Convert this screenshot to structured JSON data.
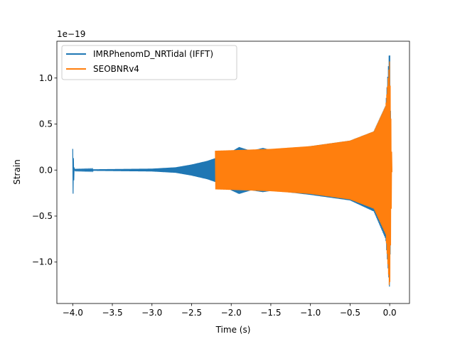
{
  "chart_data": {
    "type": "line",
    "title": "",
    "xlabel": "Time (s)",
    "ylabel": "Strain",
    "offset_text": "1e−19",
    "xlim": [
      -4.2,
      0.25
    ],
    "ylim": [
      -1.45,
      1.4
    ],
    "xticks": [
      -4.0,
      -3.5,
      -3.0,
      -2.5,
      -2.0,
      -1.5,
      -1.0,
      -0.5,
      0.0
    ],
    "xtick_labels": [
      "−4.0",
      "−3.5",
      "−3.0",
      "−2.5",
      "−2.0",
      "−1.5",
      "−1.0",
      "−0.5",
      "0.0"
    ],
    "yticks": [
      -1.0,
      -0.5,
      0.0,
      0.5,
      1.0
    ],
    "ytick_labels": [
      "−1.0",
      "−0.5",
      "0.0",
      "0.5",
      "1.0"
    ],
    "grid": false,
    "legend_position": "top-left",
    "series": [
      {
        "name": "IMRPhenomD_NRTidal (IFFT)",
        "color": "#1f77b4",
        "envelope_x": [
          -4.0,
          -3.98,
          -3.5,
          -3.0,
          -2.7,
          -2.5,
          -2.3,
          -2.2,
          -2.0,
          -1.9,
          -1.75,
          -1.6,
          -1.45,
          -1.3,
          -1.0,
          -0.5,
          -0.2,
          -0.05,
          0.0,
          0.02
        ],
        "envelope_upper": [
          0.23,
          0.005,
          0.01,
          0.015,
          0.03,
          0.06,
          0.1,
          0.13,
          0.2,
          0.25,
          0.21,
          0.24,
          0.21,
          0.23,
          0.26,
          0.32,
          0.42,
          0.7,
          1.34,
          0.0
        ],
        "envelope_lower": [
          -0.33,
          -0.005,
          -0.01,
          -0.015,
          -0.03,
          -0.06,
          -0.1,
          -0.13,
          -0.22,
          -0.26,
          -0.22,
          -0.24,
          -0.22,
          -0.24,
          -0.27,
          -0.33,
          -0.45,
          -0.75,
          -1.3,
          0.0
        ]
      },
      {
        "name": "SEOBNRv4",
        "color": "#ff7f0e",
        "envelope_x": [
          -2.2,
          -1.5,
          -1.0,
          -0.5,
          -0.2,
          -0.05,
          0.0,
          0.03
        ],
        "envelope_upper": [
          0.21,
          0.23,
          0.26,
          0.32,
          0.42,
          0.7,
          1.2,
          0.0
        ],
        "envelope_lower": [
          -0.21,
          -0.23,
          -0.26,
          -0.32,
          -0.42,
          -0.7,
          -1.33,
          0.0
        ]
      }
    ]
  }
}
